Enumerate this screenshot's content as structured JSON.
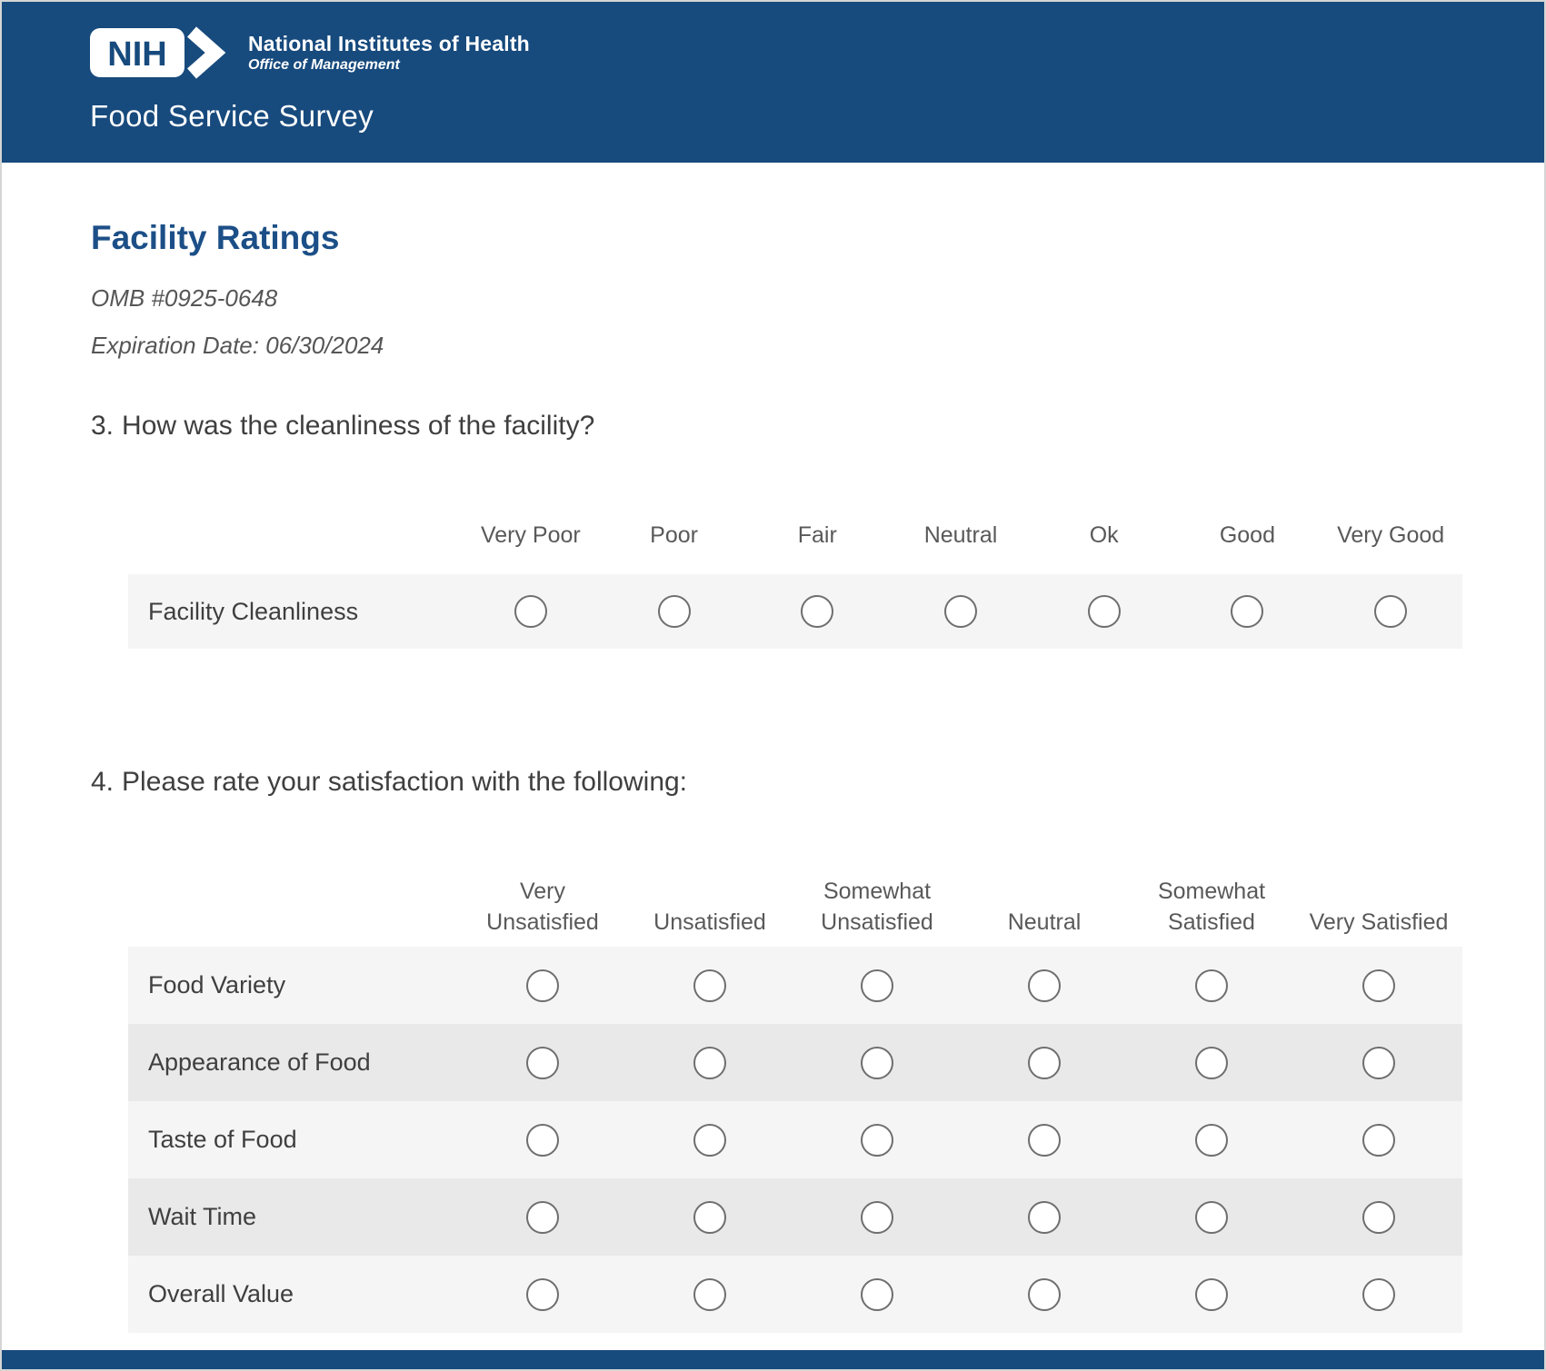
{
  "header": {
    "logo_acronym": "NIH",
    "org_name": "National Institutes of Health",
    "org_sub": "Office of Management",
    "title": "Food Service Survey"
  },
  "page": {
    "section_title": "Facility Ratings",
    "omb_number": "OMB #0925-0648",
    "expiration": "Expiration Date: 06/30/2024"
  },
  "questions": [
    {
      "number": "3.",
      "text": "How was the cleanliness of the facility?",
      "options": [
        "Very Poor",
        "Poor",
        "Fair",
        "Neutral",
        "Ok",
        "Good",
        "Very Good"
      ],
      "rows": [
        {
          "label": "Facility Cleanliness"
        }
      ]
    },
    {
      "number": "4.",
      "text": "Please rate your satisfaction with the following:",
      "options": [
        "Very\nUnsatisfied",
        "Unsatisfied",
        "Somewhat\nUnsatisfied",
        "Neutral",
        "Somewhat\nSatisfied",
        "Very Satisfied"
      ],
      "rows": [
        {
          "label": "Food Variety"
        },
        {
          "label": "Appearance of Food"
        },
        {
          "label": "Taste of Food"
        },
        {
          "label": "Wait Time"
        },
        {
          "label": "Overall Value"
        }
      ]
    }
  ],
  "colors": {
    "header_blue": "#174A7D",
    "heading_blue": "#1C4F87",
    "row_light": "#f5f5f5",
    "row_dark": "#e9e9e9",
    "radio_border": "#6e6e6e",
    "text_primary": "#3F3F3F",
    "text_secondary": "#595959"
  },
  "radio_state": "unselected"
}
